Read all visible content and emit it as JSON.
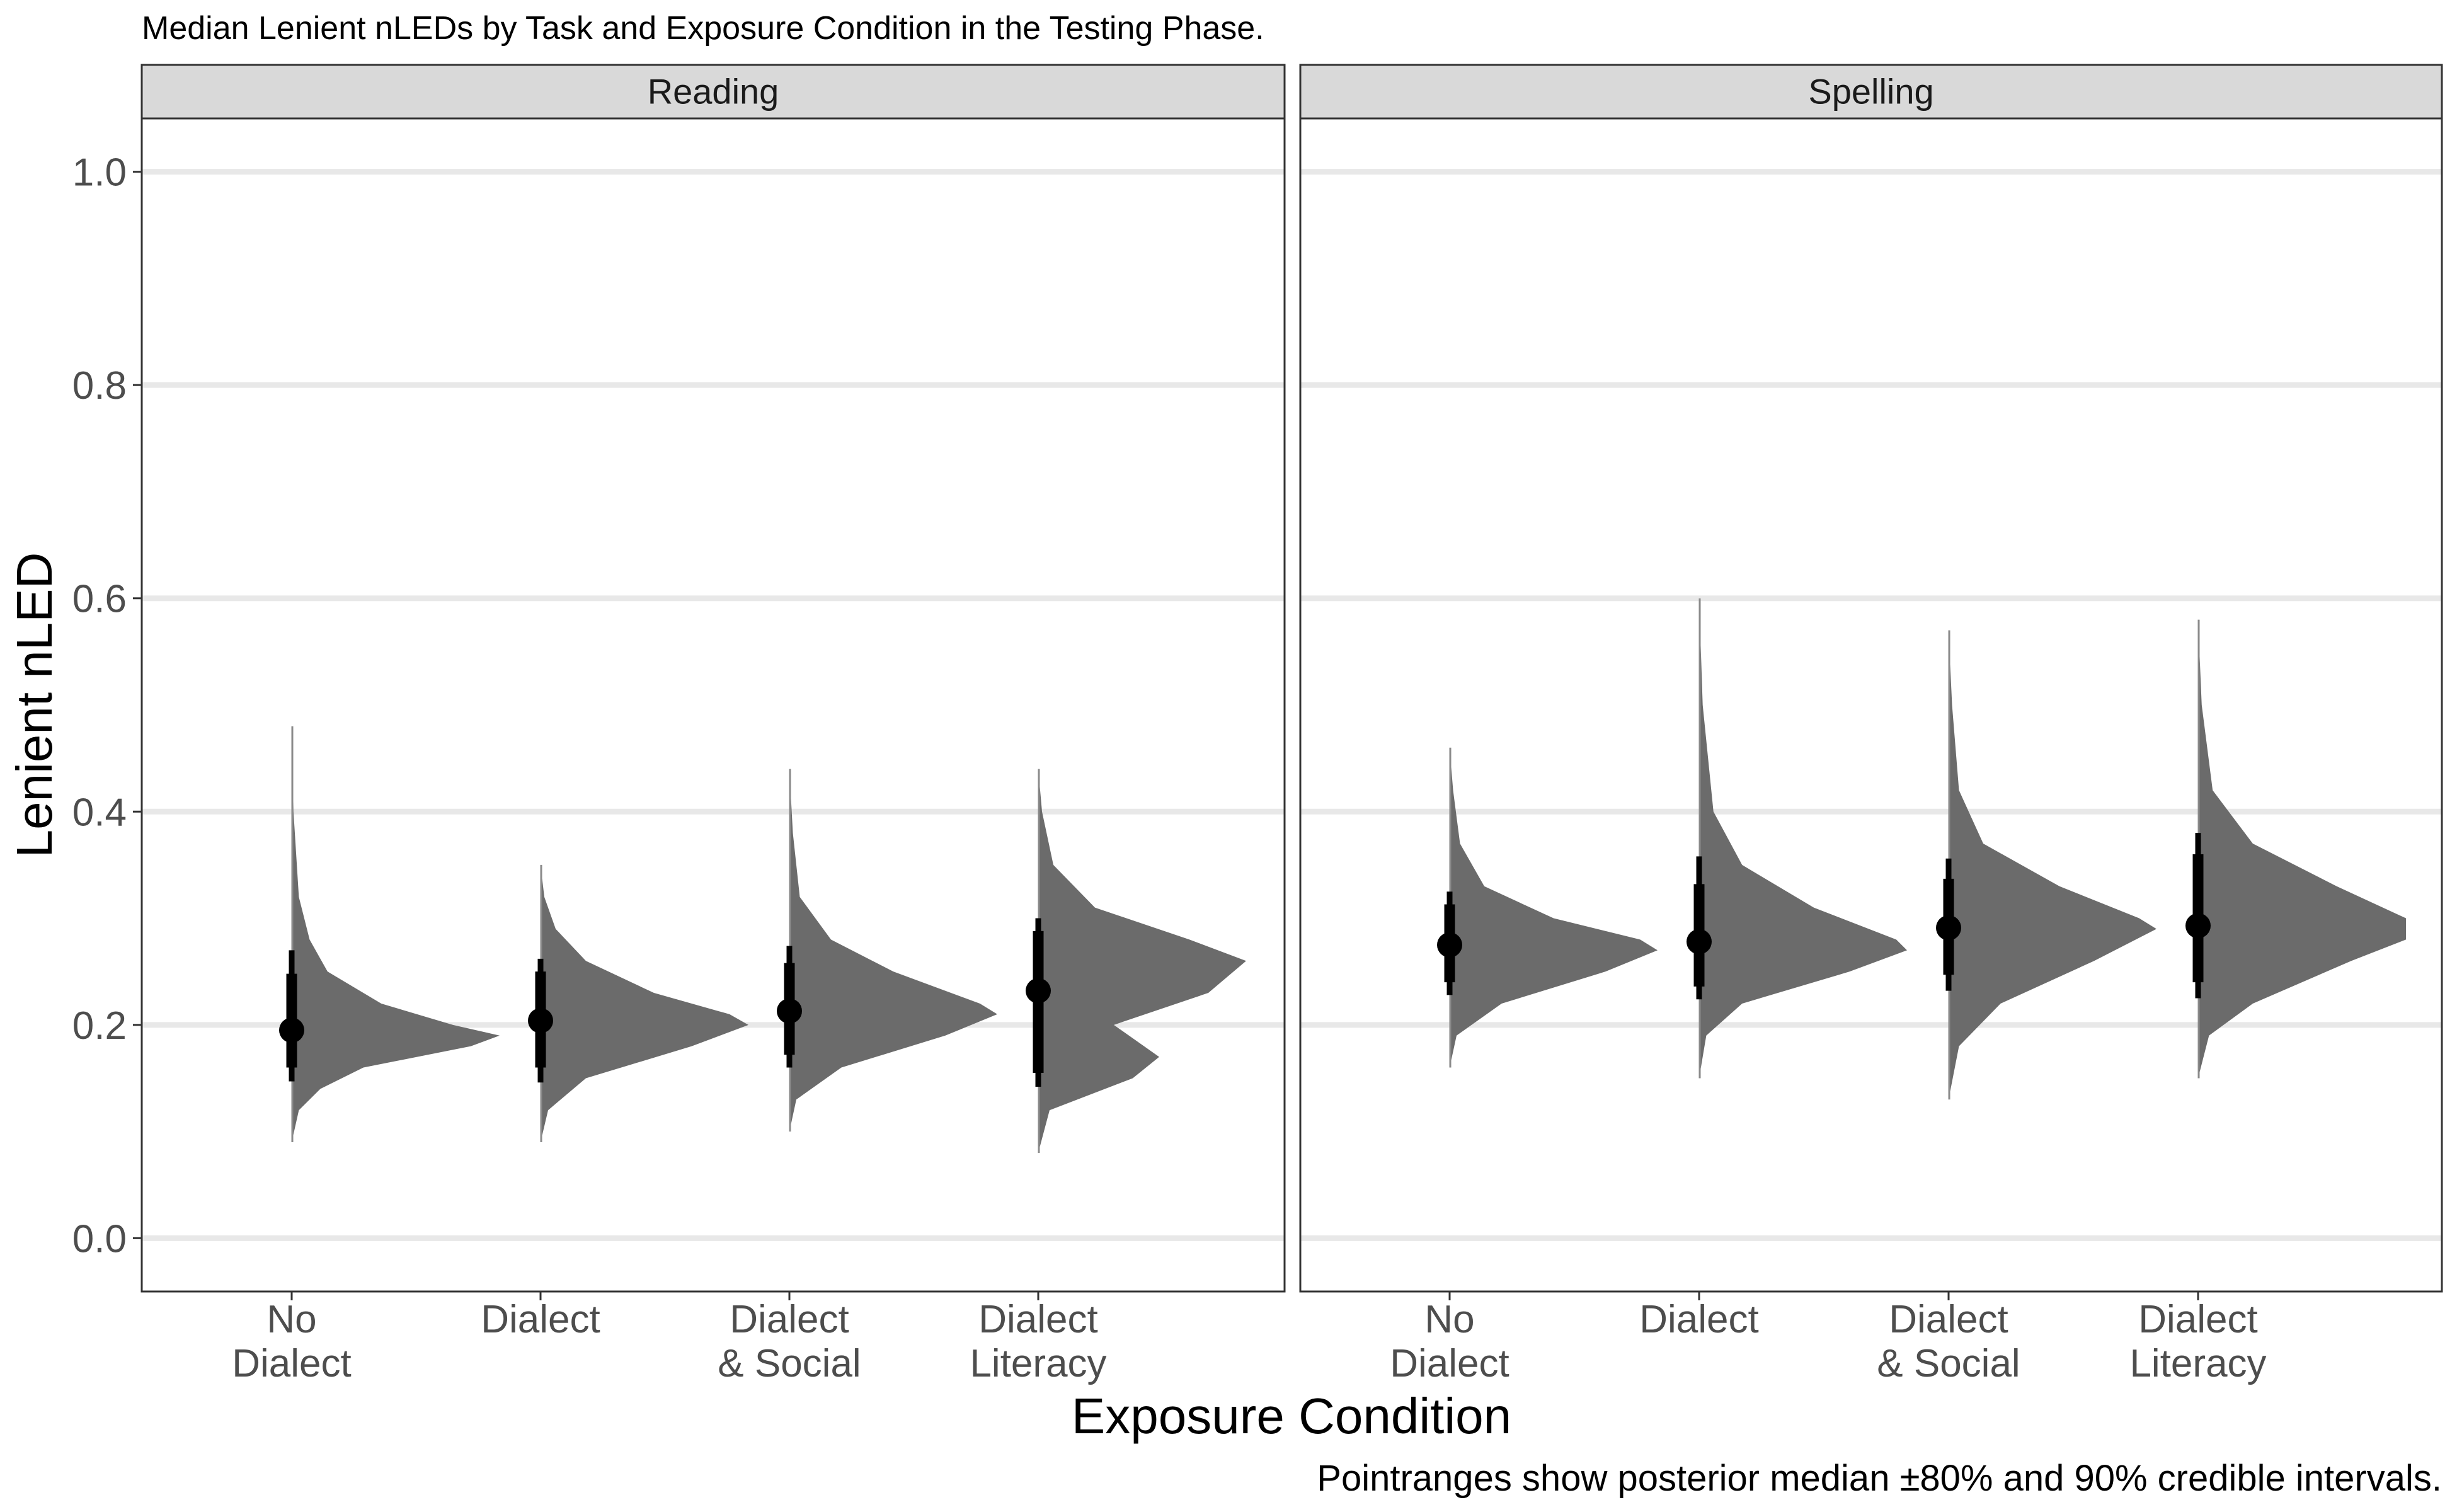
{
  "chart_data": {
    "type": "halfeye",
    "title": "Median Lenient nLEDs by Task and Exposure Condition in the Testing Phase.",
    "xlabel": "Exposure Condition",
    "ylabel": "Lenient nLED",
    "caption": "Pointranges show posterior median ±80% and 90% credible intervals.",
    "ylim": [
      -0.05,
      1.05
    ],
    "yticks": [
      "0.0",
      "0.2",
      "0.4",
      "0.6",
      "0.8",
      "1.0"
    ],
    "grid": true,
    "categories": [
      [
        "No",
        "Dialect"
      ],
      [
        "Dialect"
      ],
      [
        "Dialect",
        "& Social"
      ],
      [
        "Dialect",
        "Literacy"
      ]
    ],
    "panels": [
      {
        "name": "Reading",
        "groups": [
          {
            "category": "No Dialect",
            "median": 0.195,
            "ci80": [
              0.16,
              0.248
            ],
            "ci90": [
              0.147,
              0.27
            ],
            "tails": [
              0.09,
              0.48
            ],
            "density": [
              [
                0.09,
                0
              ],
              [
                0.12,
                0.02
              ],
              [
                0.14,
                0.08
              ],
              [
                0.16,
                0.2
              ],
              [
                0.18,
                0.5
              ],
              [
                0.19,
                0.58
              ],
              [
                0.2,
                0.45
              ],
              [
                0.22,
                0.25
              ],
              [
                0.25,
                0.1
              ],
              [
                0.28,
                0.05
              ],
              [
                0.32,
                0.02
              ],
              [
                0.4,
                0.005
              ],
              [
                0.48,
                0
              ]
            ]
          },
          {
            "category": "Dialect",
            "median": 0.204,
            "ci80": [
              0.16,
              0.25
            ],
            "ci90": [
              0.146,
              0.262
            ],
            "tails": [
              0.09,
              0.35
            ],
            "density": [
              [
                0.09,
                0
              ],
              [
                0.12,
                0.02
              ],
              [
                0.15,
                0.12
              ],
              [
                0.18,
                0.4
              ],
              [
                0.2,
                0.55
              ],
              [
                0.21,
                0.5
              ],
              [
                0.23,
                0.3
              ],
              [
                0.26,
                0.12
              ],
              [
                0.29,
                0.04
              ],
              [
                0.32,
                0.01
              ],
              [
                0.35,
                0
              ]
            ]
          },
          {
            "category": "Dialect & Social",
            "median": 0.213,
            "ci80": [
              0.172,
              0.258
            ],
            "ci90": [
              0.16,
              0.274
            ],
            "tails": [
              0.1,
              0.44
            ],
            "density": [
              [
                0.1,
                0
              ],
              [
                0.13,
                0.02
              ],
              [
                0.16,
                0.15
              ],
              [
                0.19,
                0.45
              ],
              [
                0.21,
                0.6
              ],
              [
                0.22,
                0.55
              ],
              [
                0.25,
                0.3
              ],
              [
                0.28,
                0.12
              ],
              [
                0.32,
                0.03
              ],
              [
                0.38,
                0.01
              ],
              [
                0.44,
                0
              ]
            ]
          },
          {
            "category": "Dialect Literacy",
            "median": 0.232,
            "ci80": [
              0.155,
              0.288
            ],
            "ci90": [
              0.142,
              0.3
            ],
            "tails": [
              0.08,
              0.44
            ],
            "density": [
              [
                0.08,
                0
              ],
              [
                0.12,
                0.03
              ],
              [
                0.15,
                0.25
              ],
              [
                0.17,
                0.32
              ],
              [
                0.2,
                0.2
              ],
              [
                0.23,
                0.45
              ],
              [
                0.26,
                0.55
              ],
              [
                0.28,
                0.4
              ],
              [
                0.31,
                0.15
              ],
              [
                0.35,
                0.04
              ],
              [
                0.4,
                0.01
              ],
              [
                0.44,
                0
              ]
            ]
          }
        ]
      },
      {
        "name": "Spelling",
        "groups": [
          {
            "category": "No Dialect",
            "median": 0.275,
            "ci80": [
              0.24,
              0.313
            ],
            "ci90": [
              0.228,
              0.325
            ],
            "tails": [
              0.16,
              0.46
            ],
            "density": [
              [
                0.16,
                0
              ],
              [
                0.19,
                0.02
              ],
              [
                0.22,
                0.15
              ],
              [
                0.25,
                0.45
              ],
              [
                0.27,
                0.6
              ],
              [
                0.28,
                0.55
              ],
              [
                0.3,
                0.3
              ],
              [
                0.33,
                0.1
              ],
              [
                0.37,
                0.03
              ],
              [
                0.42,
                0.01
              ],
              [
                0.46,
                0
              ]
            ]
          },
          {
            "category": "Dialect",
            "median": 0.278,
            "ci80": [
              0.236,
              0.332
            ],
            "ci90": [
              0.224,
              0.358
            ],
            "tails": [
              0.15,
              0.6
            ],
            "density": [
              [
                0.15,
                0
              ],
              [
                0.19,
                0.02
              ],
              [
                0.22,
                0.12
              ],
              [
                0.25,
                0.42
              ],
              [
                0.27,
                0.58
              ],
              [
                0.28,
                0.55
              ],
              [
                0.31,
                0.32
              ],
              [
                0.35,
                0.12
              ],
              [
                0.4,
                0.04
              ],
              [
                0.5,
                0.01
              ],
              [
                0.6,
                0
              ]
            ]
          },
          {
            "category": "Dialect & Social",
            "median": 0.291,
            "ci80": [
              0.247,
              0.337
            ],
            "ci90": [
              0.232,
              0.356
            ],
            "tails": [
              0.13,
              0.57
            ],
            "density": [
              [
                0.13,
                0
              ],
              [
                0.18,
                0.03
              ],
              [
                0.22,
                0.15
              ],
              [
                0.26,
                0.42
              ],
              [
                0.29,
                0.6
              ],
              [
                0.3,
                0.55
              ],
              [
                0.33,
                0.32
              ],
              [
                0.37,
                0.1
              ],
              [
                0.42,
                0.03
              ],
              [
                0.5,
                0.01
              ],
              [
                0.57,
                0
              ]
            ]
          },
          {
            "category": "Dialect Literacy",
            "median": 0.293,
            "ci80": [
              0.24,
              0.36
            ],
            "ci90": [
              0.225,
              0.38
            ],
            "tails": [
              0.15,
              0.58
            ],
            "density": [
              [
                0.15,
                0
              ],
              [
                0.19,
                0.03
              ],
              [
                0.22,
                0.15
              ],
              [
                0.26,
                0.42
              ],
              [
                0.28,
                0.57
              ],
              [
                0.3,
                0.57
              ],
              [
                0.33,
                0.38
              ],
              [
                0.37,
                0.15
              ],
              [
                0.42,
                0.04
              ],
              [
                0.5,
                0.01
              ],
              [
                0.58,
                0
              ]
            ]
          }
        ]
      }
    ]
  }
}
